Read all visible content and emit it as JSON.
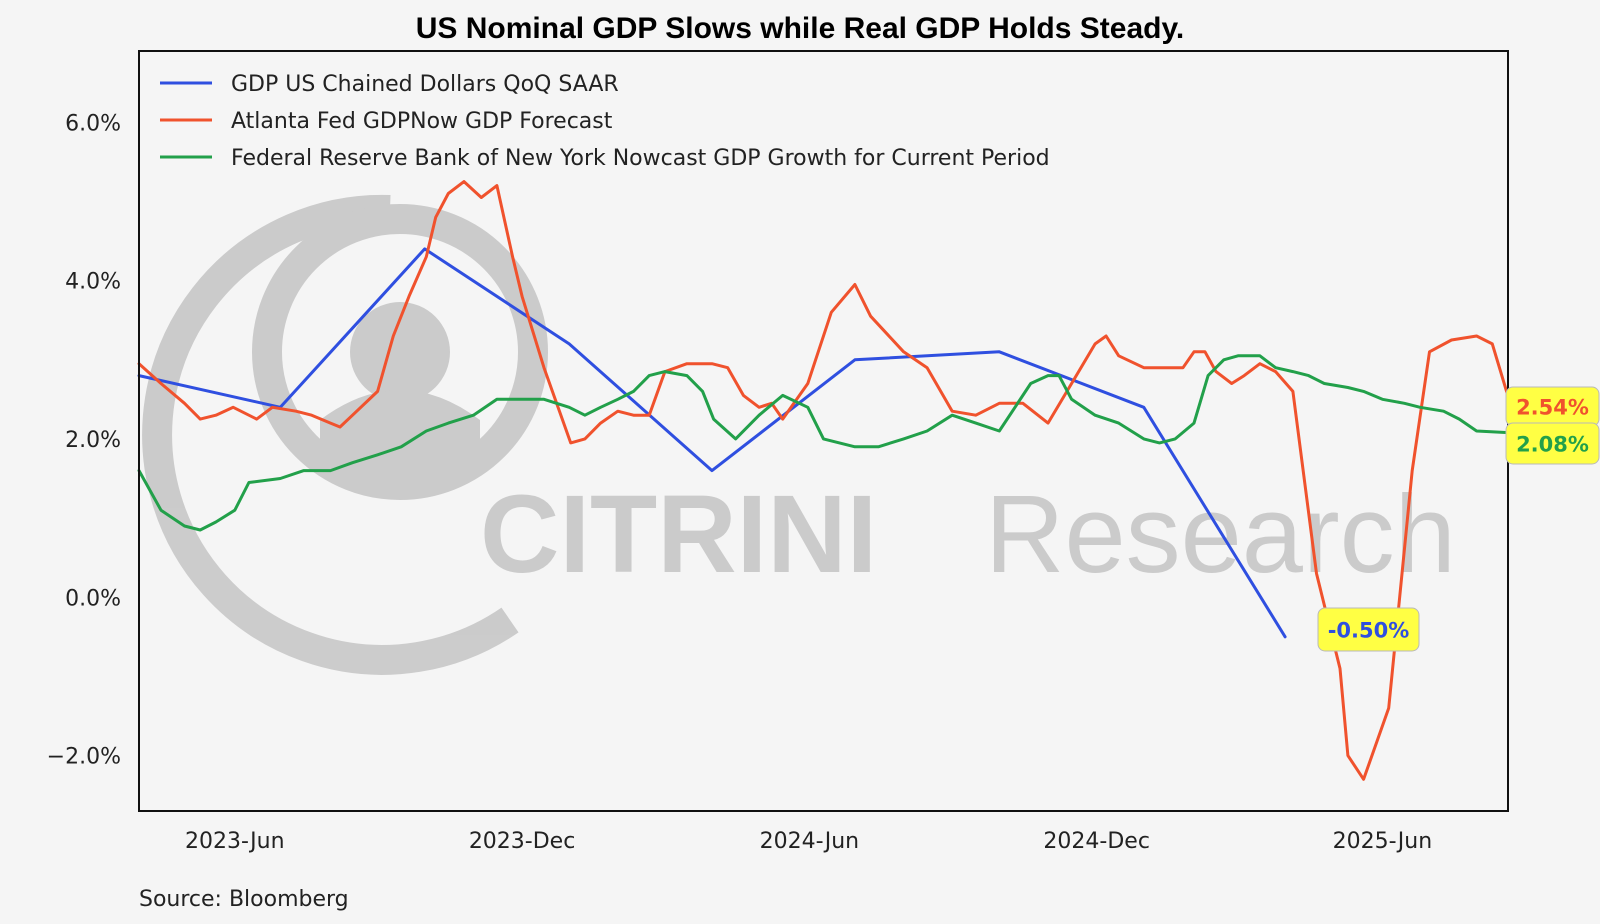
{
  "title": "US Nominal GDP Slows while Real GDP Holds Steady.",
  "source": "Source: Bloomberg",
  "watermark": {
    "bold": "CITRINI",
    "light": "Research"
  },
  "colors": {
    "gdp": "#2f4fe0",
    "atlanta": "#f0522d",
    "nyfed": "#22a04a",
    "callout_bg": "#ffff44",
    "watermark": "#c9c9c9"
  },
  "chart_data": {
    "type": "line",
    "title": "US Nominal GDP Slows while Real GDP Holds Steady.",
    "xlabel": "",
    "ylabel": "",
    "x_range": [
      "2023-04-01",
      "2025-08-20"
    ],
    "ylim": [
      -2.7,
      6.9
    ],
    "y_ticks": [
      {
        "value": -2,
        "label": "−2.0%"
      },
      {
        "value": 0,
        "label": "0.0%"
      },
      {
        "value": 2,
        "label": "2.0%"
      },
      {
        "value": 4,
        "label": "4.0%"
      },
      {
        "value": 6,
        "label": "6.0%"
      }
    ],
    "x_ticks": [
      {
        "date": "2023-06-01",
        "label": "2023-Jun"
      },
      {
        "date": "2023-12-01",
        "label": "2023-Dec"
      },
      {
        "date": "2024-06-01",
        "label": "2024-Jun"
      },
      {
        "date": "2024-12-01",
        "label": "2024-Dec"
      },
      {
        "date": "2025-06-01",
        "label": "2025-Jun"
      }
    ],
    "grid": false,
    "legend_position": "top-left",
    "series": [
      {
        "name": "GDP US Chained Dollars QoQ SAAR",
        "color_key": "gdp",
        "points": [
          [
            "2023-04-01",
            2.8
          ],
          [
            "2023-06-30",
            2.4
          ],
          [
            "2023-09-30",
            4.4
          ],
          [
            "2023-12-31",
            3.2
          ],
          [
            "2024-03-31",
            1.6
          ],
          [
            "2024-06-30",
            3.0
          ],
          [
            "2024-09-30",
            3.1
          ],
          [
            "2024-12-31",
            2.4
          ],
          [
            "2025-03-31",
            -0.5
          ]
        ],
        "callout": "-0.50%"
      },
      {
        "name": "Atlanta Fed GDPNow GDP Forecast",
        "color_key": "atlanta",
        "points": [
          [
            "2023-04-01",
            2.95
          ],
          [
            "2023-04-15",
            2.7
          ],
          [
            "2023-04-30",
            2.45
          ],
          [
            "2023-05-10",
            2.25
          ],
          [
            "2023-05-20",
            2.3
          ],
          [
            "2023-05-31",
            2.4
          ],
          [
            "2023-06-15",
            2.25
          ],
          [
            "2023-06-25",
            2.4
          ],
          [
            "2023-07-10",
            2.35
          ],
          [
            "2023-07-20",
            2.3
          ],
          [
            "2023-08-01",
            2.2
          ],
          [
            "2023-08-07",
            2.15
          ],
          [
            "2023-08-15",
            2.3
          ],
          [
            "2023-08-31",
            2.6
          ],
          [
            "2023-09-10",
            3.3
          ],
          [
            "2023-09-20",
            3.8
          ],
          [
            "2023-10-01",
            4.3
          ],
          [
            "2023-10-07",
            4.8
          ],
          [
            "2023-10-15",
            5.1
          ],
          [
            "2023-10-25",
            5.25
          ],
          [
            "2023-11-05",
            5.05
          ],
          [
            "2023-11-15",
            5.2
          ],
          [
            "2023-11-25",
            4.3
          ],
          [
            "2023-12-01",
            3.8
          ],
          [
            "2023-12-15",
            2.9
          ],
          [
            "2024-01-01",
            1.95
          ],
          [
            "2024-01-10",
            2.0
          ],
          [
            "2024-01-20",
            2.2
          ],
          [
            "2024-01-31",
            2.35
          ],
          [
            "2024-02-10",
            2.3
          ],
          [
            "2024-02-20",
            2.3
          ],
          [
            "2024-03-01",
            2.85
          ],
          [
            "2024-03-15",
            2.95
          ],
          [
            "2024-03-31",
            2.95
          ],
          [
            "2024-04-10",
            2.9
          ],
          [
            "2024-04-20",
            2.55
          ],
          [
            "2024-04-30",
            2.4
          ],
          [
            "2024-05-08",
            2.45
          ],
          [
            "2024-05-15",
            2.25
          ],
          [
            "2024-05-31",
            2.7
          ],
          [
            "2024-06-15",
            3.6
          ],
          [
            "2024-06-30",
            3.95
          ],
          [
            "2024-07-10",
            3.55
          ],
          [
            "2024-07-31",
            3.1
          ],
          [
            "2024-08-15",
            2.9
          ],
          [
            "2024-08-31",
            2.35
          ],
          [
            "2024-09-15",
            2.3
          ],
          [
            "2024-09-30",
            2.45
          ],
          [
            "2024-10-15",
            2.45
          ],
          [
            "2024-10-31",
            2.2
          ],
          [
            "2024-11-15",
            2.7
          ],
          [
            "2024-11-30",
            3.2
          ],
          [
            "2024-12-07",
            3.3
          ],
          [
            "2024-12-15",
            3.05
          ],
          [
            "2024-12-31",
            2.9
          ],
          [
            "2025-01-15",
            2.9
          ],
          [
            "2025-01-25",
            2.9
          ],
          [
            "2025-02-01",
            3.1
          ],
          [
            "2025-02-08",
            3.1
          ],
          [
            "2025-02-15",
            2.85
          ],
          [
            "2025-02-25",
            2.7
          ],
          [
            "2025-03-05",
            2.8
          ],
          [
            "2025-03-15",
            2.95
          ],
          [
            "2025-03-25",
            2.85
          ],
          [
            "2025-04-05",
            2.6
          ],
          [
            "2025-04-20",
            0.3
          ],
          [
            "2025-05-05",
            -0.9
          ],
          [
            "2025-05-10",
            -2.0
          ],
          [
            "2025-05-20",
            -2.3
          ],
          [
            "2025-06-05",
            -1.4
          ],
          [
            "2025-06-20",
            1.6
          ],
          [
            "2025-07-01",
            3.1
          ],
          [
            "2025-07-15",
            3.25
          ],
          [
            "2025-07-31",
            3.3
          ],
          [
            "2025-08-10",
            3.2
          ],
          [
            "2025-08-20",
            2.54
          ]
        ],
        "callout": "2.54%"
      },
      {
        "name": "Federal Reserve Bank of New York Nowcast GDP Growth for Current Period",
        "color_key": "nyfed",
        "points": [
          [
            "2023-04-01",
            1.6
          ],
          [
            "2023-04-15",
            1.1
          ],
          [
            "2023-04-30",
            0.9
          ],
          [
            "2023-05-10",
            0.85
          ],
          [
            "2023-05-20",
            0.95
          ],
          [
            "2023-06-01",
            1.1
          ],
          [
            "2023-06-10",
            1.45
          ],
          [
            "2023-06-30",
            1.5
          ],
          [
            "2023-07-15",
            1.6
          ],
          [
            "2023-08-01",
            1.6
          ],
          [
            "2023-08-15",
            1.7
          ],
          [
            "2023-08-31",
            1.8
          ],
          [
            "2023-09-15",
            1.9
          ],
          [
            "2023-10-01",
            2.1
          ],
          [
            "2023-10-15",
            2.2
          ],
          [
            "2023-10-31",
            2.3
          ],
          [
            "2023-11-15",
            2.5
          ],
          [
            "2023-11-30",
            2.5
          ],
          [
            "2023-12-15",
            2.5
          ],
          [
            "2023-12-31",
            2.4
          ],
          [
            "2024-01-10",
            2.3
          ],
          [
            "2024-01-20",
            2.4
          ],
          [
            "2024-01-31",
            2.5
          ],
          [
            "2024-02-10",
            2.6
          ],
          [
            "2024-02-20",
            2.8
          ],
          [
            "2024-03-01",
            2.85
          ],
          [
            "2024-03-15",
            2.8
          ],
          [
            "2024-03-25",
            2.6
          ],
          [
            "2024-04-01",
            2.25
          ],
          [
            "2024-04-15",
            2.0
          ],
          [
            "2024-04-30",
            2.3
          ],
          [
            "2024-05-15",
            2.55
          ],
          [
            "2024-05-31",
            2.4
          ],
          [
            "2024-06-10",
            2.0
          ],
          [
            "2024-06-30",
            1.9
          ],
          [
            "2024-07-15",
            1.9
          ],
          [
            "2024-07-31",
            2.0
          ],
          [
            "2024-08-15",
            2.1
          ],
          [
            "2024-08-31",
            2.3
          ],
          [
            "2024-09-15",
            2.2
          ],
          [
            "2024-09-30",
            2.1
          ],
          [
            "2024-10-10",
            2.4
          ],
          [
            "2024-10-20",
            2.7
          ],
          [
            "2024-10-31",
            2.8
          ],
          [
            "2024-11-07",
            2.8
          ],
          [
            "2024-11-15",
            2.5
          ],
          [
            "2024-11-30",
            2.3
          ],
          [
            "2024-12-15",
            2.2
          ],
          [
            "2024-12-31",
            2.0
          ],
          [
            "2025-01-10",
            1.95
          ],
          [
            "2025-01-20",
            2.0
          ],
          [
            "2025-02-01",
            2.2
          ],
          [
            "2025-02-10",
            2.8
          ],
          [
            "2025-02-20",
            3.0
          ],
          [
            "2025-03-01",
            3.05
          ],
          [
            "2025-03-15",
            3.05
          ],
          [
            "2025-03-25",
            2.9
          ],
          [
            "2025-04-05",
            2.85
          ],
          [
            "2025-04-15",
            2.8
          ],
          [
            "2025-04-25",
            2.7
          ],
          [
            "2025-05-10",
            2.65
          ],
          [
            "2025-05-20",
            2.6
          ],
          [
            "2025-06-01",
            2.5
          ],
          [
            "2025-06-15",
            2.45
          ],
          [
            "2025-06-25",
            2.4
          ],
          [
            "2025-07-10",
            2.35
          ],
          [
            "2025-07-20",
            2.25
          ],
          [
            "2025-07-31",
            2.1
          ],
          [
            "2025-08-20",
            2.08
          ]
        ],
        "callout": "2.08%"
      }
    ]
  }
}
